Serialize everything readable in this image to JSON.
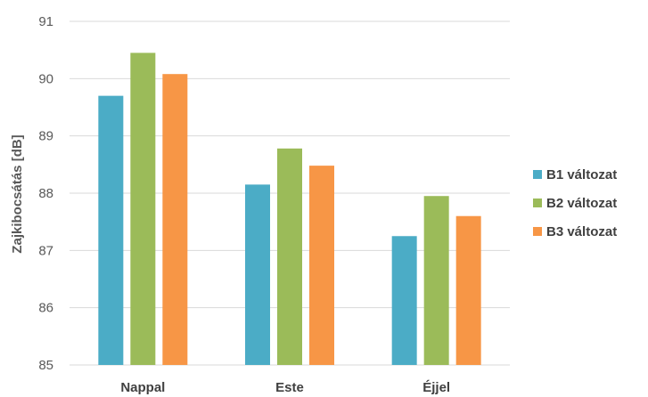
{
  "chart_data": {
    "type": "bar",
    "categories": [
      "Nappal",
      "Este",
      "Éjjel"
    ],
    "series": [
      {
        "name": "B1 változat",
        "color": "#4bacc6",
        "values": [
          89.7,
          88.15,
          87.25
        ]
      },
      {
        "name": "B2 változat",
        "color": "#9bbb59",
        "values": [
          90.45,
          88.78,
          87.95
        ]
      },
      {
        "name": "B3 változat",
        "color": "#f79646",
        "values": [
          90.08,
          88.48,
          87.6
        ]
      }
    ],
    "ylabel": "Zajkibocsátás  [dB]",
    "ylim": [
      85,
      91
    ],
    "yticks": [
      "85",
      "86",
      "87",
      "88",
      "89",
      "90",
      "91"
    ],
    "grid": true,
    "legend_position": "right"
  }
}
